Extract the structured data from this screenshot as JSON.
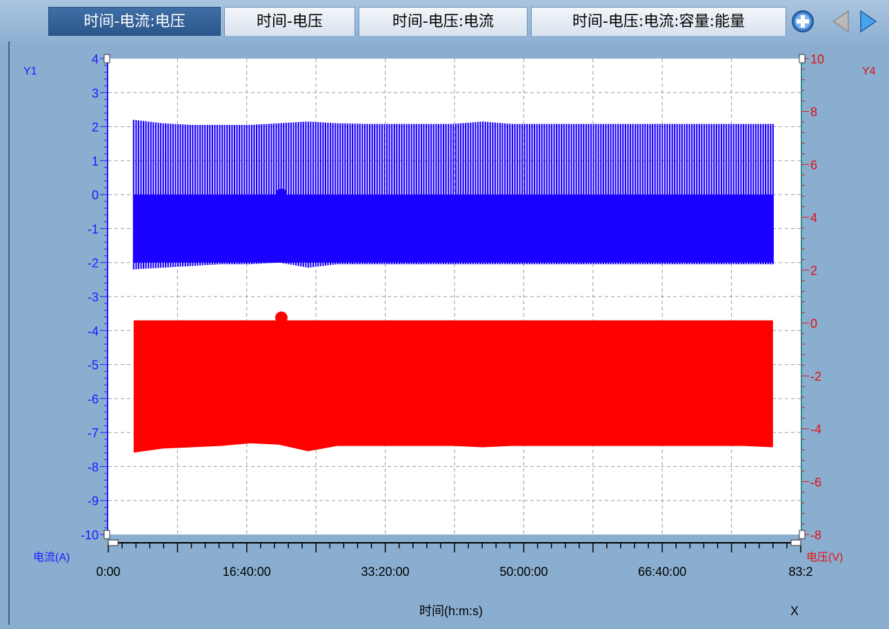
{
  "tabs": [
    {
      "label": "时间-电流:电压",
      "active": true
    },
    {
      "label": "时间-电压",
      "active": false
    },
    {
      "label": "时间-电压:电流",
      "active": false
    },
    {
      "label": "时间-电压:电流:容量:能量",
      "active": false
    }
  ],
  "nav_icons": [
    "add-icon",
    "arrow-left-icon",
    "arrow-right-icon"
  ],
  "colors": {
    "current": "#1a00ff",
    "voltage": "#ff0000",
    "right_axis": "#e01010",
    "left_axis": "#1a1aff"
  },
  "chart_data": {
    "type": "line",
    "xlabel": "时间(h:m:s)",
    "x_axis_name": "X",
    "x_ticks": [
      0,
      60000,
      120000,
      180000,
      240000,
      300000
    ],
    "x_tick_labels": [
      "0:00",
      "16:40:00",
      "33:20:00",
      "50:00:00",
      "66:40:00",
      "83:2"
    ],
    "xlim": [
      0,
      300000
    ],
    "grid": true,
    "left_axis": {
      "name": "Y1",
      "label": "电流(A)",
      "range": [
        -10,
        4
      ],
      "ticks": [
        -10,
        -9,
        -8,
        -7,
        -6,
        -5,
        -4,
        -3,
        -2,
        -1,
        0,
        1,
        2,
        3,
        4
      ]
    },
    "right_axis": {
      "name": "Y4",
      "label": "电压(V)",
      "range": [
        -8,
        10
      ],
      "ticks": [
        -8,
        -6,
        -4,
        -2,
        0,
        2,
        4,
        6,
        8,
        10
      ]
    },
    "series": [
      {
        "name": "电流",
        "axis": "left",
        "x_range": [
          11000,
          288000
        ],
        "band_bottom": [
          -2.2,
          -2.15,
          -2.1,
          -2.05,
          -2.05,
          -2.0,
          -2.15,
          -2.05,
          -2.05,
          -2.05,
          -2.05,
          -2.05,
          -2.05,
          -2.05,
          -2.05,
          -2.05,
          -2.05,
          -2.05,
          -2.05,
          -2.05,
          -2.05,
          -2.05,
          -2.05
        ],
        "band_top": [
          2.2,
          2.1,
          2.05,
          2.05,
          2.05,
          2.1,
          2.15,
          2.1,
          2.08,
          2.08,
          2.08,
          2.08,
          2.15,
          2.08,
          2.08,
          2.08,
          2.08,
          2.08,
          2.08,
          2.08,
          2.08,
          2.08,
          2.08
        ],
        "dense_min": -2.0,
        "dense_max": 0.0
      },
      {
        "name": "电压",
        "axis": "right",
        "x_range": [
          11000,
          288000
        ],
        "band_top": [
          0.1,
          0.1,
          0.1,
          0.1,
          0.1,
          0.1,
          0.1,
          0.1,
          0.1,
          0.1,
          0.1,
          0.1,
          0.1,
          0.1,
          0.1,
          0.1,
          0.1,
          0.1,
          0.1,
          0.1,
          0.1,
          0.1,
          0.1
        ],
        "band_bottom": [
          -4.9,
          -4.75,
          -4.7,
          -4.65,
          -4.55,
          -4.6,
          -4.85,
          -4.65,
          -4.65,
          -4.65,
          -4.65,
          -4.65,
          -4.7,
          -4.65,
          -4.65,
          -4.65,
          -4.65,
          -4.65,
          -4.65,
          -4.65,
          -4.65,
          -4.65,
          -4.7
        ]
      }
    ],
    "markers": [
      {
        "series": "电压",
        "x": 75000,
        "y": 0.2,
        "shape": "circle"
      }
    ]
  }
}
